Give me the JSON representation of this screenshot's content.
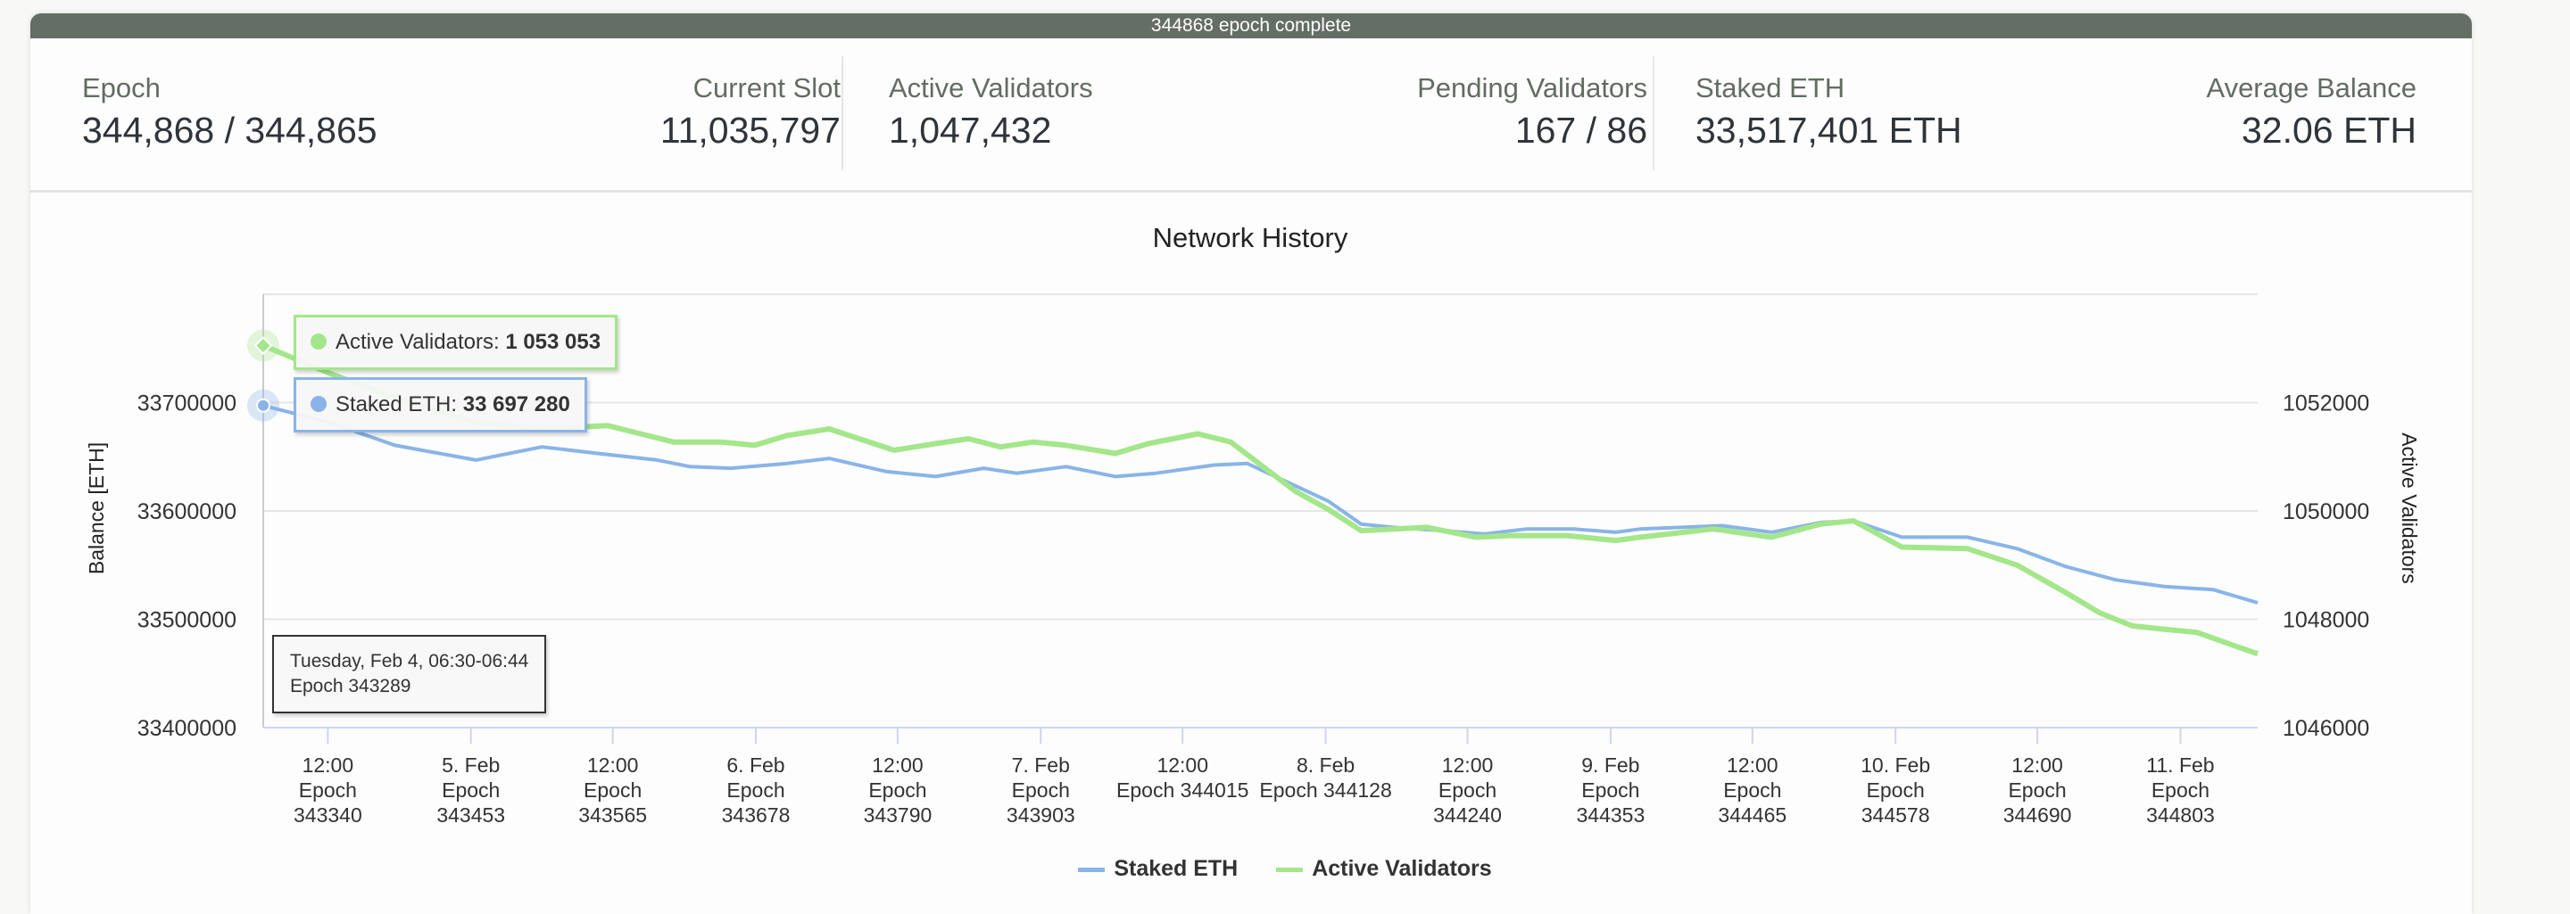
{
  "status_bar": {
    "text": "344868 epoch complete"
  },
  "stats": {
    "epoch": {
      "label": "Epoch",
      "value": "344,868 / 344,865"
    },
    "current_slot": {
      "label": "Current Slot",
      "value": "11,035,797"
    },
    "active_validators": {
      "label": "Active Validators",
      "value": "1,047,432"
    },
    "pending_validators": {
      "label": "Pending Validators",
      "value": "167 / 86"
    },
    "staked_eth": {
      "label": "Staked ETH",
      "value": "33,517,401 ETH"
    },
    "average_balance": {
      "label": "Average Balance",
      "value": "32.06 ETH"
    }
  },
  "colors": {
    "topbar": "#646e64",
    "staked": "#89b4e8",
    "active": "#a4e68a"
  },
  "tooltip": {
    "active_label": "Active Validators: ",
    "active_value": "1 053 053",
    "staked_label": "Staked ETH: ",
    "staked_value": "33 697 280",
    "x_line1": "Tuesday, Feb 4, 06:30-06:44",
    "x_line2": "Epoch 343289"
  },
  "chart_data": {
    "type": "line",
    "title": "Network History",
    "ylabel": "Balance [ETH]",
    "y2label": "Active Validators",
    "ylim": [
      33400000,
      33800000
    ],
    "y2lim": [
      1046000,
      1054000
    ],
    "xlim": [
      343289,
      344864
    ],
    "grid": true,
    "legend_position": "bottom-center",
    "yticks": [
      "33400000",
      "33500000",
      "33600000",
      "33700000"
    ],
    "yticks_values": [
      33400000,
      33500000,
      33600000,
      33700000
    ],
    "y2ticks": [
      "1046000",
      "1048000",
      "1050000",
      "1052000"
    ],
    "y2ticks_values": [
      1046000,
      1048000,
      1050000,
      1052000
    ],
    "xticks": [
      {
        "epoch": 343340,
        "lines": [
          "12:00",
          "Epoch",
          "343340"
        ]
      },
      {
        "epoch": 343453,
        "lines": [
          "5. Feb",
          "Epoch",
          "343453"
        ]
      },
      {
        "epoch": 343565,
        "lines": [
          "12:00",
          "Epoch",
          "343565"
        ]
      },
      {
        "epoch": 343678,
        "lines": [
          "6. Feb",
          "Epoch",
          "343678"
        ]
      },
      {
        "epoch": 343790,
        "lines": [
          "12:00",
          "Epoch",
          "343790"
        ]
      },
      {
        "epoch": 343903,
        "lines": [
          "7. Feb",
          "Epoch",
          "343903"
        ]
      },
      {
        "epoch": 344015,
        "lines": [
          "12:00",
          "Epoch 344015",
          ""
        ]
      },
      {
        "epoch": 344128,
        "lines": [
          "8. Feb",
          "Epoch 344128",
          ""
        ]
      },
      {
        "epoch": 344240,
        "lines": [
          "12:00",
          "Epoch",
          "344240"
        ]
      },
      {
        "epoch": 344353,
        "lines": [
          "9. Feb",
          "Epoch",
          "344353"
        ]
      },
      {
        "epoch": 344465,
        "lines": [
          "12:00",
          "Epoch",
          "344465"
        ]
      },
      {
        "epoch": 344578,
        "lines": [
          "10. Feb",
          "Epoch",
          "344578"
        ]
      },
      {
        "epoch": 344690,
        "lines": [
          "12:00",
          "Epoch",
          "344690"
        ]
      },
      {
        "epoch": 344803,
        "lines": [
          "11. Feb",
          "Epoch",
          "344803"
        ]
      }
    ],
    "series": [
      {
        "name": "Staked ETH",
        "axis": "left",
        "x": [
          343289,
          343341,
          343393,
          343457,
          343509,
          343554,
          343600,
          343626,
          343658,
          343703,
          343736,
          343781,
          343820,
          343858,
          343884,
          343923,
          343962,
          343994,
          344040,
          344066,
          344130,
          344156,
          344182,
          344221,
          344253,
          344286,
          344324,
          344357,
          344376,
          344441,
          344480,
          344519,
          344545,
          344583,
          344635,
          344674,
          344713,
          344752,
          344790,
          344829,
          344864
        ],
        "values": [
          33697280,
          33681800,
          33660600,
          33647000,
          33659100,
          33653000,
          33647000,
          33640900,
          33639400,
          33643900,
          33648500,
          33636400,
          33631800,
          33639400,
          33634800,
          33640900,
          33631800,
          33634800,
          33642400,
          33643900,
          33609100,
          33587900,
          33584800,
          33581800,
          33578800,
          33583300,
          33583300,
          33580300,
          33583300,
          33586400,
          33580300,
          33589400,
          33590900,
          33575800,
          33575800,
          33565200,
          33548500,
          33536400,
          33530300,
          33527300,
          33515200
        ]
      },
      {
        "name": "Active Validators",
        "axis": "right",
        "x": [
          343289,
          343341,
          343393,
          343457,
          343509,
          343561,
          343587,
          343613,
          343651,
          343677,
          343703,
          343736,
          343787,
          343820,
          343846,
          343871,
          343897,
          343923,
          343962,
          343988,
          344027,
          344053,
          344104,
          344130,
          344156,
          344182,
          344208,
          344247,
          344273,
          344318,
          344357,
          344376,
          344434,
          344480,
          344519,
          344545,
          344583,
          344635,
          344674,
          344713,
          344739,
          344765,
          344790,
          344816,
          344849,
          344864
        ],
        "values": [
          1053053,
          1052545,
          1052090,
          1051636,
          1051515,
          1051576,
          1051424,
          1051272,
          1051272,
          1051212,
          1051394,
          1051515,
          1051121,
          1051242,
          1051333,
          1051182,
          1051272,
          1051212,
          1051061,
          1051242,
          1051424,
          1051272,
          1050364,
          1050030,
          1049636,
          1049667,
          1049697,
          1049515,
          1049545,
          1049545,
          1049455,
          1049515,
          1049667,
          1049515,
          1049758,
          1049818,
          1049333,
          1049303,
          1049000,
          1048485,
          1048121,
          1047879,
          1047818,
          1047758,
          1047485,
          1047364
        ]
      }
    ]
  }
}
